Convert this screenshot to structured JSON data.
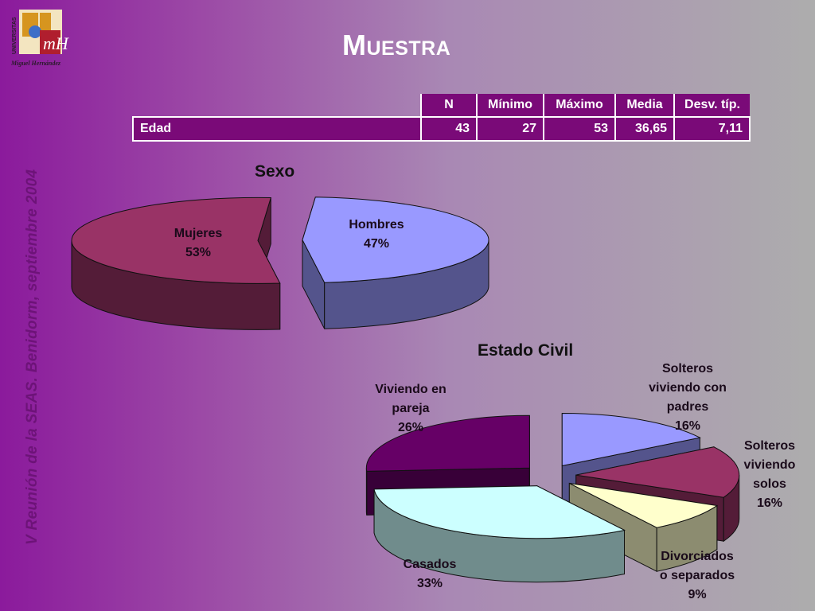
{
  "header": {
    "title": "Muestra",
    "side_text": "V Reunión de la SEAS. Benidorm, septiembre 2004",
    "logo": {
      "top_text": "UNIVERSITAS",
      "bottom_text": "Miguel Hernández",
      "mark": "mH"
    }
  },
  "table": {
    "headers": [
      "N",
      "Mínimo",
      "Máximo",
      "Media",
      "Desv. típ."
    ],
    "rows": [
      {
        "label": "Edad",
        "values": [
          "43",
          "27",
          "53",
          "36,65",
          "7,11"
        ]
      }
    ]
  },
  "chart_data": [
    {
      "type": "pie",
      "title": "Sexo",
      "categories": [
        "Hombres",
        "Mujeres"
      ],
      "values": [
        47,
        53
      ],
      "value_labels": [
        "47%",
        "53%"
      ],
      "colors": [
        "#9999ff",
        "#993366"
      ],
      "exploded": true,
      "three_d": true
    },
    {
      "type": "pie",
      "title": "Estado Civil",
      "categories": [
        "Solteros viviendo con padres",
        "Solteros viviendo solos",
        "Divorciados o separados",
        "Casados",
        "Viviendo en pareja"
      ],
      "values": [
        16,
        16,
        9,
        33,
        26
      ],
      "value_labels": [
        "16%",
        "16%",
        "9%",
        "33%",
        "26%"
      ],
      "label_lines": [
        [
          "Solteros",
          "viviendo con",
          "padres",
          "16%"
        ],
        [
          "Solteros",
          "viviendo",
          "solos",
          "16%"
        ],
        [
          "Divorciados",
          "o separados",
          "9%"
        ],
        [
          "Casados",
          "33%"
        ],
        [
          "Viviendo en",
          "pareja",
          "26%"
        ]
      ],
      "colors": [
        "#9999ff",
        "#993366",
        "#ffffcc",
        "#ccffff",
        "#660066"
      ],
      "exploded": true,
      "three_d": true
    }
  ]
}
